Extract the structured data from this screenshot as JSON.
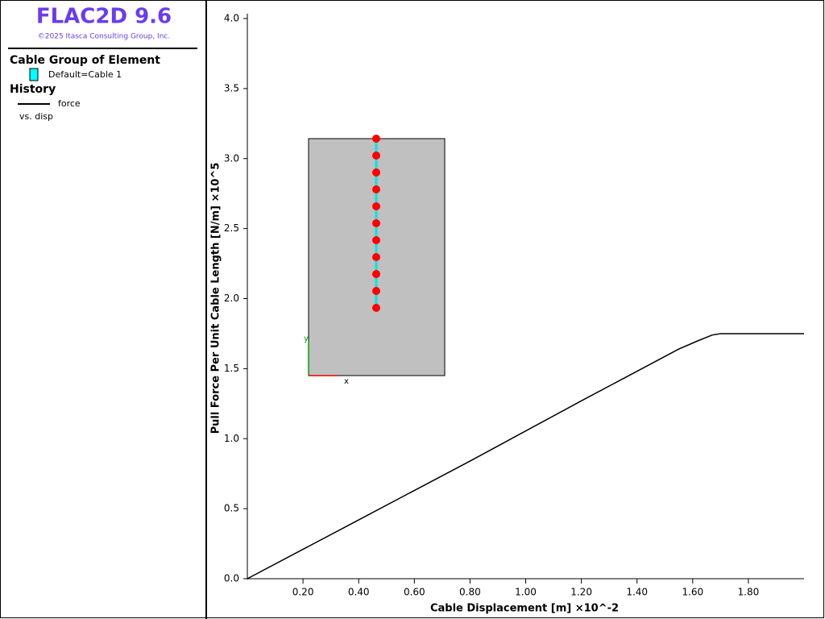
{
  "header": {
    "title": "FLAC2D 9.6",
    "copyright": "©2025 Itasca Consulting Group, Inc."
  },
  "legend": {
    "group_title": "Cable Group of Element",
    "group_entry": "Default=Cable 1",
    "group_color": "#00ffff",
    "history_title": "History",
    "versus": "vs. disp"
  },
  "chart_data": {
    "type": "line",
    "x_label": "Cable Displacement [m]  ×10^-2",
    "y_label": "Pull Force Per Unit Cable Length [N/m]  ×10^5",
    "x": [
      0,
      0.4,
      0.8,
      1.2,
      1.55,
      1.62,
      1.67,
      1.7,
      2.0
    ],
    "series": [
      {
        "name": "force",
        "color": "#000000",
        "values": [
          0,
          0.42,
          0.84,
          1.27,
          1.64,
          1.7,
          1.74,
          1.75,
          1.75
        ]
      }
    ],
    "xlim": [
      0,
      2.0
    ],
    "ylim": [
      0,
      4.0
    ],
    "xticks": [
      {
        "value": 0.2,
        "label": "0.20"
      },
      {
        "value": 0.4,
        "label": "0.40"
      },
      {
        "value": 0.6,
        "label": "0.60"
      },
      {
        "value": 0.8,
        "label": "0.80"
      },
      {
        "value": 1.0,
        "label": "1.00"
      },
      {
        "value": 1.2,
        "label": "1.20"
      },
      {
        "value": 1.4,
        "label": "1.40"
      },
      {
        "value": 1.6,
        "label": "1.60"
      },
      {
        "value": 1.8,
        "label": "1.80"
      }
    ],
    "yticks": [
      {
        "value": 0,
        "label": "0.0"
      },
      0.5,
      {
        "value": 1,
        "label": "1.0"
      },
      1.5,
      {
        "value": 2,
        "label": "2.0"
      },
      2.5,
      {
        "value": 3,
        "label": "3.0"
      },
      3.5,
      {
        "value": 4,
        "label": "4.0"
      }
    ],
    "inset": {
      "x_axis": "x",
      "y_axis": "y"
    }
  }
}
